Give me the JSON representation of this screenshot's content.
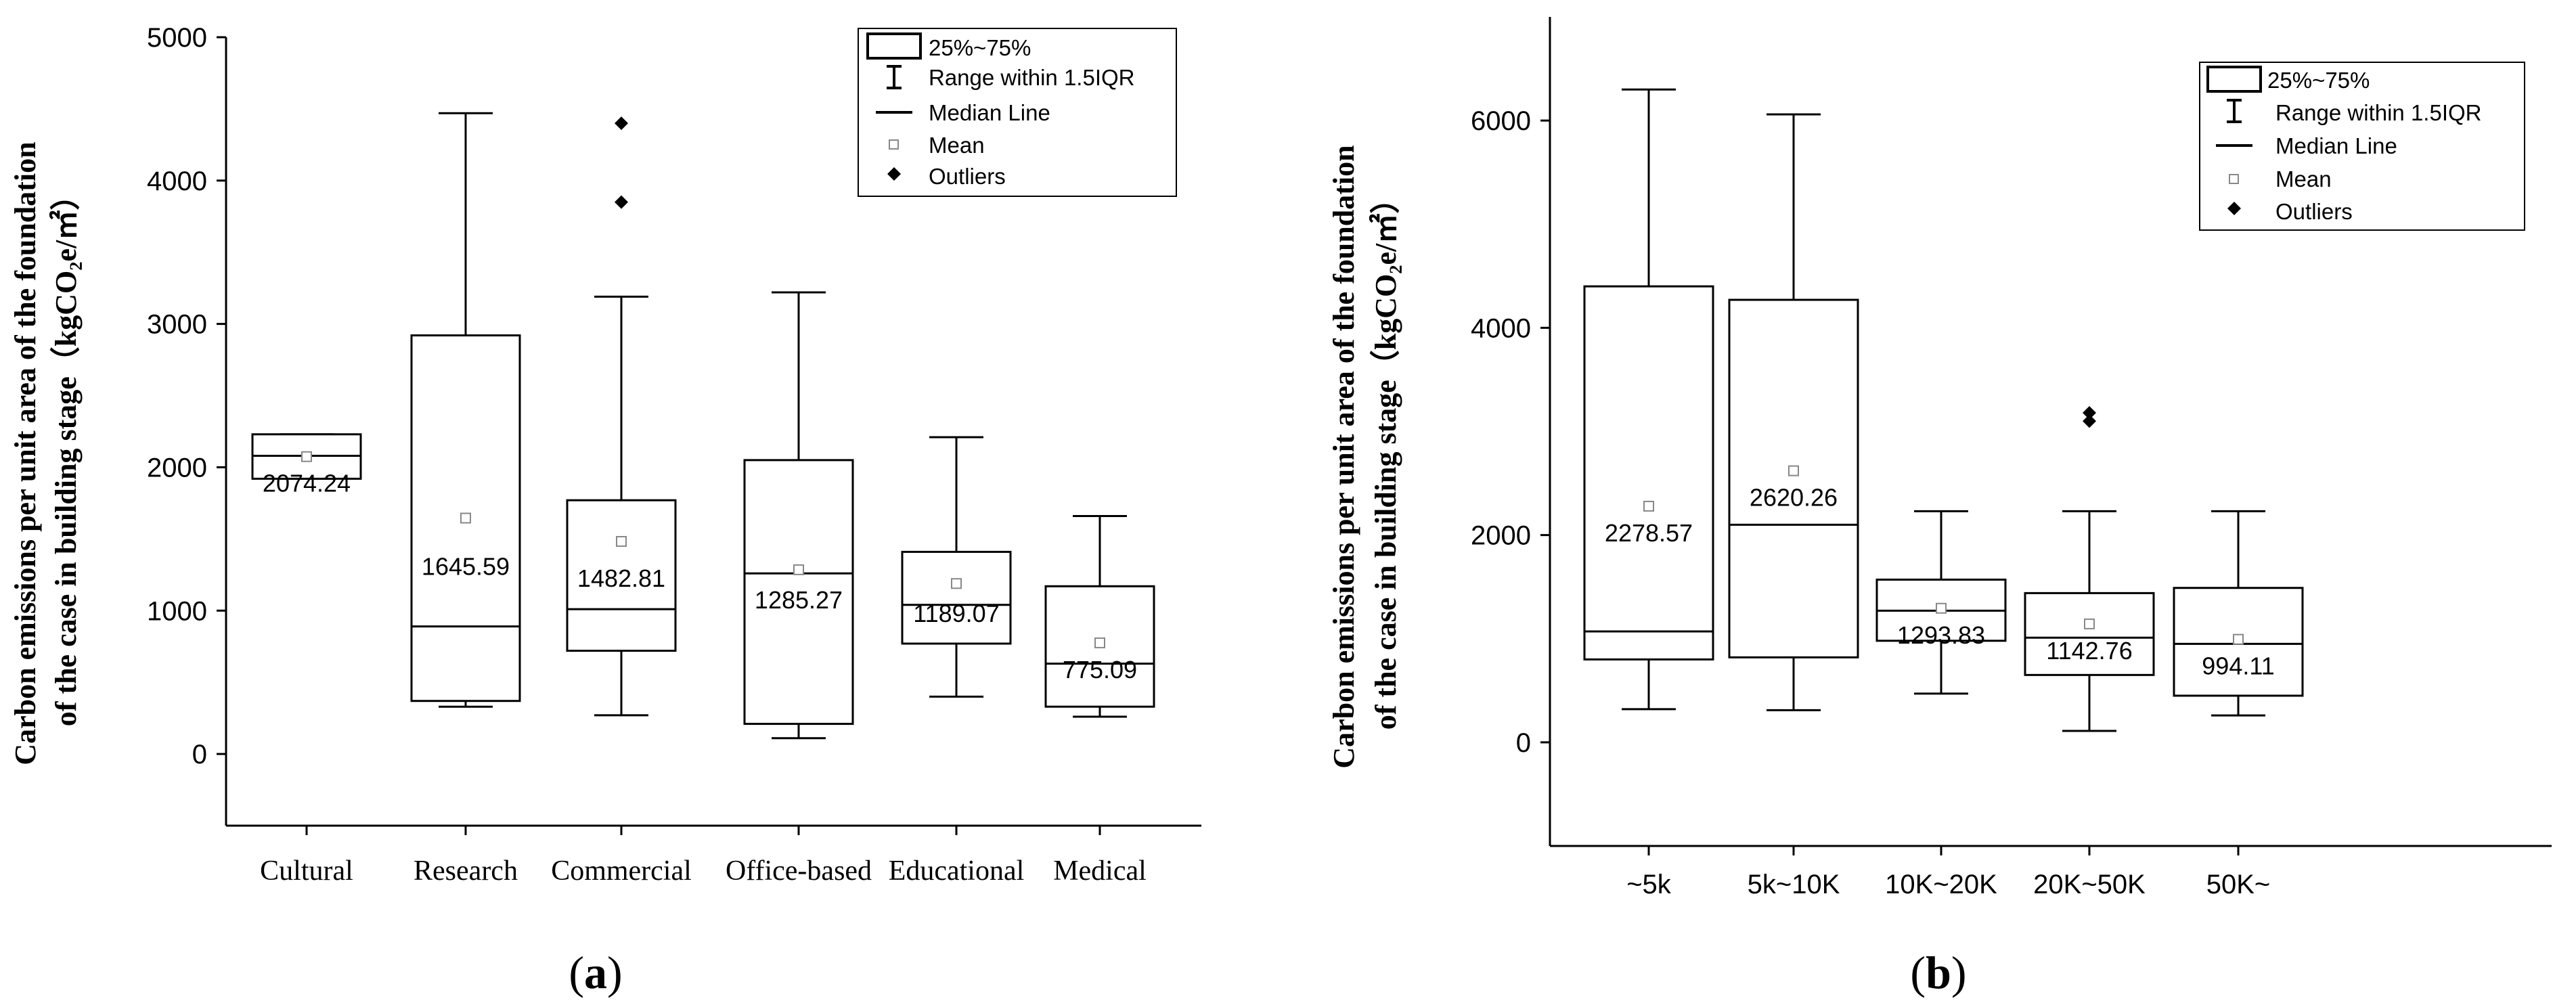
{
  "chart_data": [
    {
      "type": "box",
      "panel_label": "a",
      "ylabel_line1": "Carbon emissions per unit area of the foundation",
      "ylabel_line2": "of the case in building stage（kgCO₂e/㎡）",
      "ylim": [
        -500,
        5000
      ],
      "yticks": [
        0,
        1000,
        2000,
        3000,
        4000,
        5000
      ],
      "categories": [
        "Cultural",
        "Research",
        "Commercial",
        "Office-based",
        "Educational",
        "Medical"
      ],
      "boxes": [
        {
          "q1": 1920,
          "median": 2080,
          "q3": 2230,
          "whisker_low": 1920,
          "whisker_high": 2230,
          "mean": 2074.24,
          "mean_label": "2074.24",
          "outliers": []
        },
        {
          "q1": 370,
          "median": 890,
          "q3": 2920,
          "whisker_low": 330,
          "whisker_high": 4470,
          "mean": 1645.59,
          "mean_label": "1645.59",
          "outliers": []
        },
        {
          "q1": 720,
          "median": 1010,
          "q3": 1770,
          "whisker_low": 270,
          "whisker_high": 3190,
          "mean": 1482.81,
          "mean_label": "1482.81",
          "outliers": [
            3850,
            4400
          ]
        },
        {
          "q1": 210,
          "median": 1260,
          "q3": 2050,
          "whisker_low": 110,
          "whisker_high": 3220,
          "mean": 1285.27,
          "mean_label": "1285.27",
          "outliers": []
        },
        {
          "q1": 770,
          "median": 1040,
          "q3": 1410,
          "whisker_low": 400,
          "whisker_high": 2210,
          "mean": 1189.07,
          "mean_label": "1189.07",
          "outliers": []
        },
        {
          "q1": 330,
          "median": 630,
          "q3": 1170,
          "whisker_low": 260,
          "whisker_high": 1660,
          "mean": 775.09,
          "mean_label": "775.09",
          "outliers": []
        }
      ],
      "legend": {
        "placement": "top-right",
        "items": [
          "25%~75%",
          "Range within 1.5IQR",
          "Median Line",
          "Mean",
          "Outliers"
        ]
      }
    },
    {
      "type": "box",
      "panel_label": "b",
      "ylabel_line1": "Carbon emissions per unit area of the foundation",
      "ylabel_line2": "of the case in building stage（kgCO₂e/㎡）",
      "ylim": [
        -1000,
        7000
      ],
      "yticks": [
        0,
        2000,
        4000,
        6000
      ],
      "categories": [
        "~5k",
        "5k~10K",
        "10K~20K",
        "20K~50K",
        "50K~"
      ],
      "boxes": [
        {
          "q1": 800,
          "median": 1070,
          "q3": 4400,
          "whisker_low": 320,
          "whisker_high": 6300,
          "mean": 2278.57,
          "mean_label": "2278.57",
          "outliers": []
        },
        {
          "q1": 820,
          "median": 2100,
          "q3": 4270,
          "whisker_low": 310,
          "whisker_high": 6060,
          "mean": 2620.26,
          "mean_label": "2620.26",
          "outliers": []
        },
        {
          "q1": 980,
          "median": 1270,
          "q3": 1570,
          "whisker_low": 470,
          "whisker_high": 2230,
          "mean": 1293.83,
          "mean_label": "1293.83",
          "outliers": []
        },
        {
          "q1": 650,
          "median": 1010,
          "q3": 1440,
          "whisker_low": 110,
          "whisker_high": 2230,
          "mean": 1142.76,
          "mean_label": "1142.76",
          "outliers": [
            3100,
            3180
          ]
        },
        {
          "q1": 450,
          "median": 950,
          "q3": 1490,
          "whisker_low": 260,
          "whisker_high": 2230,
          "mean": 994.11,
          "mean_label": "994.11",
          "outliers": []
        }
      ],
      "legend": {
        "placement": "top-right",
        "items": [
          "25%~75%",
          "Range within 1.5IQR",
          "Median Line",
          "Mean",
          "Outliers"
        ]
      }
    }
  ]
}
